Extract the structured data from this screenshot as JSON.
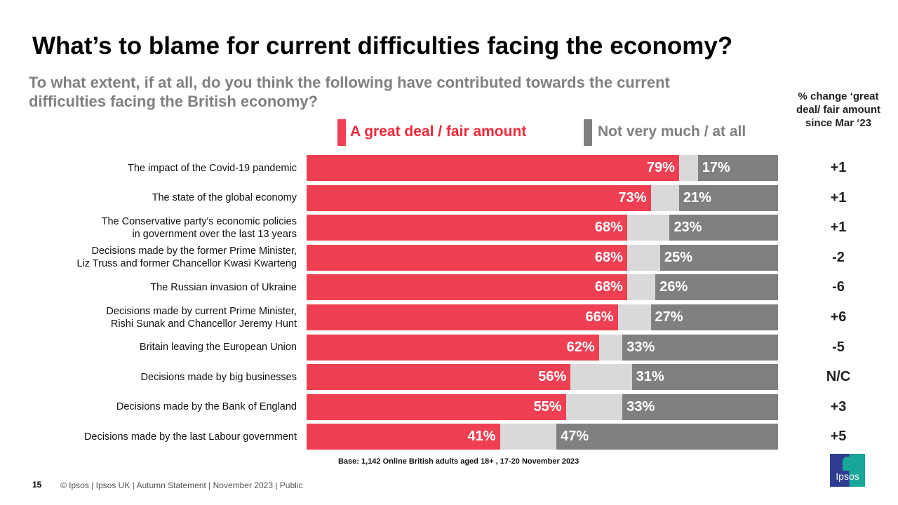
{
  "chart_data": {
    "type": "bar",
    "orientation": "horizontal",
    "stacked": true,
    "title": "What’s to blame for current difficulties facing the economy?",
    "subtitle": "To what extent, if at all, do you think the following have contributed towards the current difficulties facing the British economy?",
    "categories": [
      "The impact of the Covid-19 pandemic",
      "The state of the global economy",
      "The Conservative party's economic policies\nin government over the last 13 years",
      "Decisions made by the former Prime Minister,\nLiz Truss and former Chancellor Kwasi Kwarteng",
      "The Russian invasion of Ukraine",
      "Decisions made by current Prime Minister,\nRishi Sunak and Chancellor Jeremy Hunt",
      "Britain leaving the European Union",
      "Decisions made by big businesses",
      "Decisions made by the Bank of England",
      "Decisions made by the last Labour government"
    ],
    "series": [
      {
        "name": "A great deal / fair amount",
        "color": "#ee4052",
        "values": [
          79,
          73,
          68,
          68,
          68,
          66,
          62,
          56,
          55,
          41
        ]
      },
      {
        "name": "Not very much / at all",
        "color": "#808080",
        "values": [
          17,
          21,
          23,
          25,
          26,
          27,
          33,
          31,
          33,
          47
        ]
      }
    ],
    "remainder_color": "#d9d9d9",
    "xlim": [
      0,
      100
    ],
    "change_header": "% change ‘great deal/ fair amount since Mar ‘23",
    "change_values": [
      "+1",
      "+1",
      "+1",
      "-2",
      "-6",
      "+6",
      "-5",
      "N/C",
      "+3",
      "+5"
    ],
    "legend_position": "top",
    "grid": false
  },
  "footnote": "Base: 1,142 Online British adults aged 18+ , 17-20 November 2023",
  "page_number": "15",
  "footer": "© Ipsos |  Ipsos UK | Autumn Statement | November  2023 | Public",
  "logo_text": "Ipsos"
}
